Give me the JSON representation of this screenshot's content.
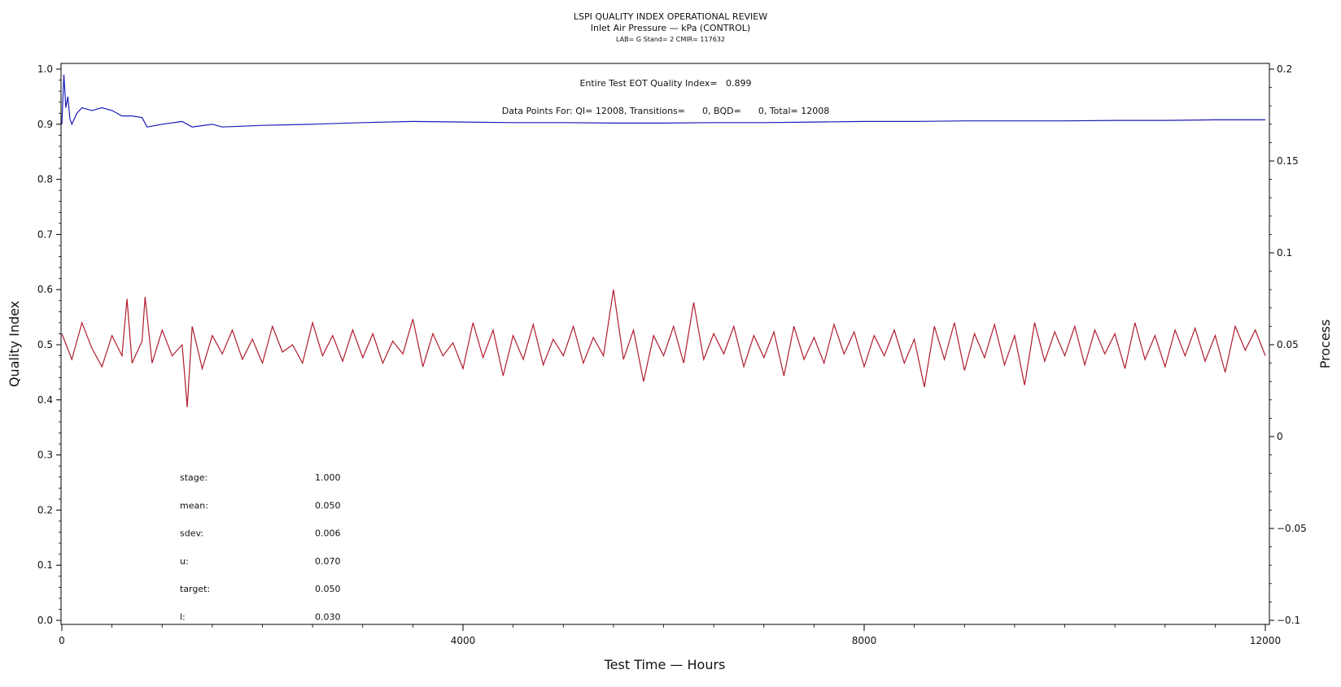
{
  "title": "LSPI QUALITY INDEX OPERATIONAL REVIEW",
  "subtitle": "Inlet Air Pressure — kPa (CONTROL)",
  "sub_subtitle": "LAB= G Stand= 2 CMIR= 117632",
  "annotations": {
    "quality_index": "Entire Test EOT Quality Index=   0.899",
    "data_points": "Data Points For: QI= 12008, Transitions=      0, BQD=      0, Total= 12008"
  },
  "stats": [
    {
      "label": "stage:",
      "value": "1.000"
    },
    {
      "label": "mean:",
      "value": "0.050"
    },
    {
      "label": "sdev:",
      "value": "0.006"
    },
    {
      "label": "u:",
      "value": "0.070"
    },
    {
      "label": "target:",
      "value": "0.050"
    },
    {
      "label": "l:",
      "value": "0.030"
    }
  ],
  "colors": {
    "quality_index": "#1a1ab8",
    "process": "#b01c2e",
    "axis": "#000000"
  },
  "chart_data": {
    "type": "line",
    "xlabel": "Test Time — Hours",
    "ylabel": "Quality Index",
    "y2label": "Process",
    "xlim": [
      0,
      12000
    ],
    "ylim": [
      0.0,
      1.0
    ],
    "y2lim": [
      -0.1,
      0.2
    ],
    "x_ticks": [
      "0",
      "4000",
      "8000",
      "12000"
    ],
    "y_ticks": [
      "0.0",
      "0.1",
      "0.2",
      "0.3",
      "0.4",
      "0.5",
      "0.6",
      "0.7",
      "0.8",
      "0.9",
      "1.0"
    ],
    "y2_ticks": [
      "−0.1",
      "−0.05",
      "0",
      "0.05",
      "0.1",
      "0.15",
      "0.2"
    ],
    "series": [
      {
        "axis": "left",
        "x": [
          0,
          20,
          40,
          60,
          80,
          100,
          150,
          200,
          300,
          400,
          500,
          600,
          700,
          800,
          850,
          1000,
          1200,
          1300,
          1500,
          1600,
          2000,
          2500,
          3000,
          3500,
          4000,
          4500,
          5000,
          5500,
          6000,
          6500,
          7000,
          7500,
          8000,
          8500,
          9000,
          9500,
          10000,
          10500,
          11000,
          11500,
          12000
        ],
        "y": [
          0.9,
          0.99,
          0.93,
          0.95,
          0.91,
          0.9,
          0.92,
          0.93,
          0.925,
          0.93,
          0.925,
          0.915,
          0.915,
          0.912,
          0.895,
          0.9,
          0.905,
          0.895,
          0.9,
          0.895,
          0.898,
          0.9,
          0.903,
          0.905,
          0.904,
          0.903,
          0.903,
          0.902,
          0.902,
          0.903,
          0.903,
          0.904,
          0.905,
          0.905,
          0.906,
          0.906,
          0.906,
          0.907,
          0.907,
          0.908,
          0.908
        ]
      },
      {
        "axis": "right",
        "x": [
          0,
          100,
          200,
          300,
          400,
          500,
          600,
          650,
          700,
          800,
          830,
          900,
          1000,
          1100,
          1200,
          1250,
          1300,
          1400,
          1500,
          1600,
          1700,
          1800,
          1900,
          2000,
          2100,
          2200,
          2300,
          2400,
          2500,
          2600,
          2700,
          2800,
          2900,
          3000,
          3100,
          3200,
          3300,
          3400,
          3500,
          3600,
          3700,
          3800,
          3900,
          4000,
          4100,
          4200,
          4300,
          4400,
          4500,
          4600,
          4700,
          4800,
          4900,
          5000,
          5100,
          5200,
          5300,
          5400,
          5500,
          5600,
          5700,
          5800,
          5900,
          6000,
          6100,
          6200,
          6300,
          6400,
          6500,
          6600,
          6700,
          6800,
          6900,
          7000,
          7100,
          7200,
          7300,
          7400,
          7500,
          7600,
          7700,
          7800,
          7900,
          8000,
          8100,
          8200,
          8300,
          8400,
          8500,
          8600,
          8700,
          8800,
          8900,
          9000,
          9100,
          9200,
          9300,
          9400,
          9500,
          9600,
          9700,
          9800,
          9900,
          10000,
          10100,
          10200,
          10300,
          10400,
          10500,
          10600,
          10700,
          10800,
          10900,
          11000,
          11100,
          11200,
          11300,
          11400,
          11500,
          11600,
          11700,
          11800,
          11900,
          12000
        ],
        "y": [
          0.056,
          0.042,
          0.062,
          0.048,
          0.038,
          0.055,
          0.044,
          0.075,
          0.04,
          0.052,
          0.076,
          0.04,
          0.058,
          0.044,
          0.05,
          0.016,
          0.06,
          0.037,
          0.055,
          0.045,
          0.058,
          0.042,
          0.053,
          0.04,
          0.06,
          0.046,
          0.05,
          0.04,
          0.062,
          0.044,
          0.055,
          0.041,
          0.058,
          0.043,
          0.056,
          0.04,
          0.052,
          0.045,
          0.064,
          0.038,
          0.056,
          0.044,
          0.051,
          0.037,
          0.062,
          0.043,
          0.058,
          0.033,
          0.055,
          0.042,
          0.061,
          0.039,
          0.053,
          0.044,
          0.06,
          0.04,
          0.054,
          0.044,
          0.08,
          0.042,
          0.058,
          0.03,
          0.055,
          0.044,
          0.06,
          0.04,
          0.073,
          0.042,
          0.056,
          0.045,
          0.06,
          0.038,
          0.055,
          0.043,
          0.057,
          0.033,
          0.06,
          0.042,
          0.054,
          0.04,
          0.061,
          0.045,
          0.057,
          0.038,
          0.055,
          0.044,
          0.058,
          0.04,
          0.053,
          0.027,
          0.06,
          0.042,
          0.062,
          0.036,
          0.056,
          0.043,
          0.061,
          0.039,
          0.055,
          0.028,
          0.062,
          0.041,
          0.057,
          0.044,
          0.06,
          0.039,
          0.058,
          0.045,
          0.056,
          0.037,
          0.062,
          0.042,
          0.055,
          0.038,
          0.058,
          0.044,
          0.059,
          0.041,
          0.055,
          0.035,
          0.06,
          0.047,
          0.058,
          0.044
        ]
      }
    ],
    "grid": false,
    "legend": "none"
  }
}
